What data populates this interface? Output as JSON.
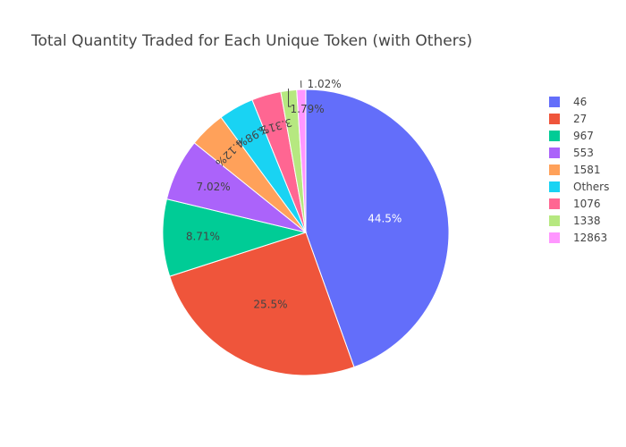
{
  "chart_data": {
    "type": "pie",
    "title": "Total Quantity Traded for Each Unique Token (with Others)",
    "legend_position": "right",
    "slices": [
      {
        "label": "46",
        "percent": 44.5,
        "percent_label": "44.5%",
        "color": "#636efa",
        "text_color": "#ffffff"
      },
      {
        "label": "27",
        "percent": 25.5,
        "percent_label": "25.5%",
        "color": "#ef553b",
        "text_color": "#444444"
      },
      {
        "label": "967",
        "percent": 8.71,
        "percent_label": "8.71%",
        "color": "#00cc96",
        "text_color": "#444444"
      },
      {
        "label": "553",
        "percent": 7.02,
        "percent_label": "7.02%",
        "color": "#ab63fa",
        "text_color": "#444444"
      },
      {
        "label": "1581",
        "percent": 4.12,
        "percent_label": "4.12%",
        "color": "#ffa15a",
        "text_color": "#444444"
      },
      {
        "label": "Others",
        "percent": 3.98,
        "percent_label": "3.98%",
        "color": "#19d3f3",
        "text_color": "#444444"
      },
      {
        "label": "1076",
        "percent": 3.31,
        "percent_label": "3.31%",
        "color": "#ff6692",
        "text_color": "#444444"
      },
      {
        "label": "1338",
        "percent": 1.79,
        "percent_label": "1.79%",
        "color": "#b6e880",
        "text_color": "#444444"
      },
      {
        "label": "12863",
        "percent": 1.02,
        "percent_label": "1.02%",
        "color": "#ff97ff",
        "text_color": "#444444"
      }
    ]
  }
}
